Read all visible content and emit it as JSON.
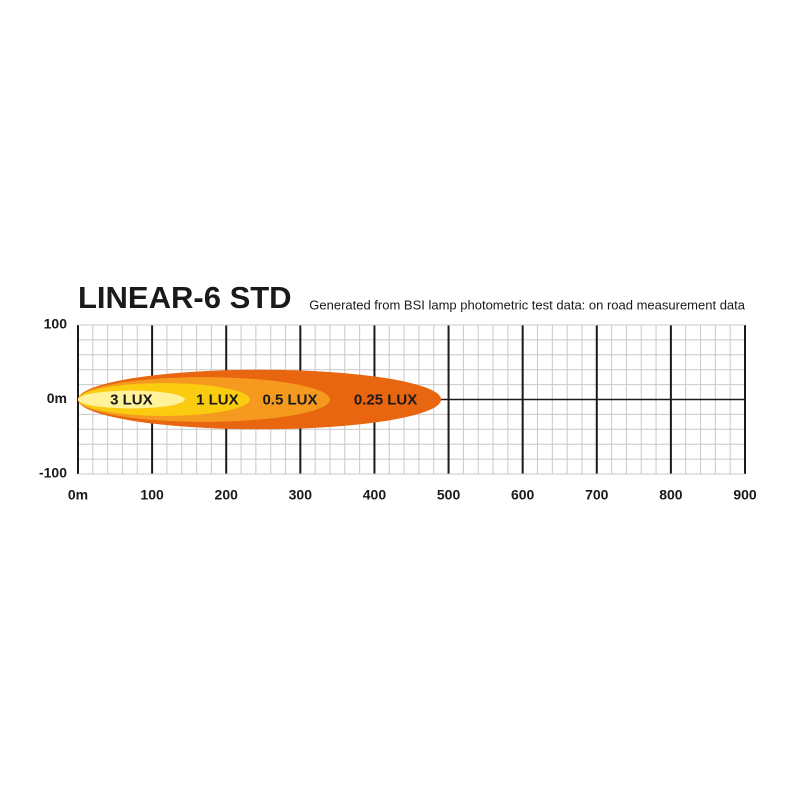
{
  "chart_data": {
    "type": "beam",
    "title": "LINEAR-6 STD",
    "subtitle": "Generated from BSI lamp photometric test data: on road measurement data",
    "xlim": [
      0,
      900
    ],
    "xticks": [
      {
        "value": 0,
        "label": "0m"
      },
      100,
      200,
      300,
      400,
      500,
      600,
      700,
      800,
      900
    ],
    "ylim": [
      -100,
      100
    ],
    "yticks": [
      100,
      {
        "value": 0,
        "label": "0m"
      },
      -100
    ],
    "grid": true,
    "minor_grid": 20,
    "contours": [
      {
        "name": "0.25 LUX",
        "distance": 490,
        "half_width": 40,
        "color": "#e8660f"
      },
      {
        "name": "0.5 LUX",
        "distance": 340,
        "half_width": 30,
        "color": "#f59a1f"
      },
      {
        "name": "1 LUX",
        "distance": 232,
        "half_width": 22,
        "color": "#fbcb10"
      },
      {
        "name": "3 LUX",
        "distance": 144,
        "half_width": 12,
        "color": "#fff29a"
      }
    ]
  }
}
